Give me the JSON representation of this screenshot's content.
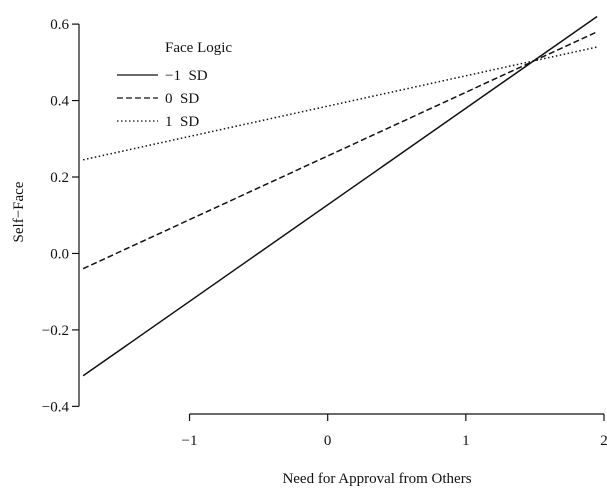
{
  "chart_data": {
    "type": "line",
    "title": "",
    "xlabel": "Need for Approval from Others",
    "ylabel": "Self−Face",
    "xlim": [
      -1.8,
      2.0
    ],
    "ylim": [
      -0.42,
      0.65
    ],
    "x_ticks": [
      -1,
      0,
      1,
      2
    ],
    "x_tick_labels": [
      "−1",
      "0",
      "1",
      "2"
    ],
    "y_ticks": [
      -0.4,
      -0.2,
      0.0,
      0.2,
      0.4,
      0.6
    ],
    "y_tick_labels": [
      "−0.4",
      "−0.2",
      "0.0",
      "0.2",
      "0.4",
      "0.6"
    ],
    "grid": false,
    "legend": {
      "title": "Face Logic",
      "placement": "top-left"
    },
    "series": [
      {
        "name": "−1  SD",
        "line_style": "solid",
        "color": "#111111",
        "x": [
          -1.77,
          1.95
        ],
        "y": [
          -0.32,
          0.62
        ]
      },
      {
        "name": "0  SD",
        "line_style": "dashed",
        "color": "#111111",
        "x": [
          -1.77,
          1.95
        ],
        "y": [
          -0.04,
          0.58
        ]
      },
      {
        "name": "1  SD",
        "line_style": "dotted",
        "color": "#111111",
        "x": [
          -1.77,
          1.95
        ],
        "y": [
          0.245,
          0.54
        ]
      }
    ]
  }
}
